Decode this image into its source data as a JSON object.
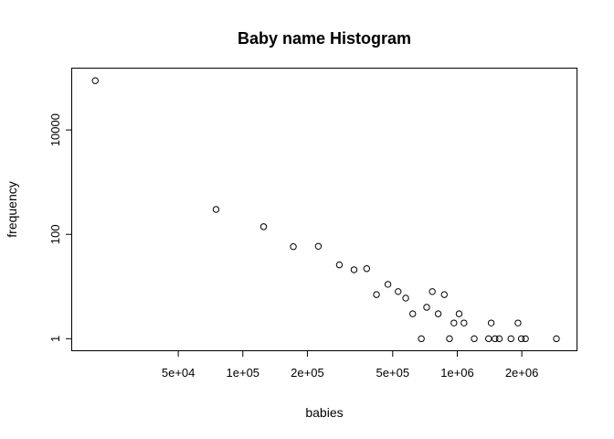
{
  "chart_data": {
    "type": "scatter",
    "title": "Baby name Histogram",
    "xlabel": "babies",
    "ylabel": "frequency",
    "x_scale": "log",
    "y_scale": "log",
    "xlim": [
      16000,
      3600000
    ],
    "ylim": [
      0.6,
      150000
    ],
    "x_ticks": [
      {
        "value": 50000,
        "label": "5e+04"
      },
      {
        "value": 100000,
        "label": "1e+05"
      },
      {
        "value": 200000,
        "label": "2e+05"
      },
      {
        "value": 500000,
        "label": "5e+05"
      },
      {
        "value": 1000000,
        "label": "1e+06"
      },
      {
        "value": 2000000,
        "label": "2e+06"
      }
    ],
    "y_ticks": [
      {
        "value": 1,
        "label": "1"
      },
      {
        "value": 100,
        "label": "100"
      },
      {
        "value": 10000,
        "label": "10000"
      }
    ],
    "grid": false,
    "legend": "none",
    "points": [
      {
        "x": 20500,
        "y": 88000
      },
      {
        "x": 75000,
        "y": 300
      },
      {
        "x": 125000,
        "y": 140
      },
      {
        "x": 172000,
        "y": 58
      },
      {
        "x": 225000,
        "y": 59
      },
      {
        "x": 282000,
        "y": 26
      },
      {
        "x": 330000,
        "y": 21
      },
      {
        "x": 378000,
        "y": 22
      },
      {
        "x": 420000,
        "y": 7
      },
      {
        "x": 475000,
        "y": 11
      },
      {
        "x": 530000,
        "y": 8
      },
      {
        "x": 575000,
        "y": 6
      },
      {
        "x": 620000,
        "y": 3
      },
      {
        "x": 680000,
        "y": 1
      },
      {
        "x": 720000,
        "y": 4
      },
      {
        "x": 765000,
        "y": 8
      },
      {
        "x": 815000,
        "y": 3
      },
      {
        "x": 870000,
        "y": 7
      },
      {
        "x": 920000,
        "y": 1
      },
      {
        "x": 965000,
        "y": 2
      },
      {
        "x": 1020000,
        "y": 3
      },
      {
        "x": 1075000,
        "y": 2
      },
      {
        "x": 1200000,
        "y": 1
      },
      {
        "x": 1400000,
        "y": 1
      },
      {
        "x": 1440000,
        "y": 2
      },
      {
        "x": 1500000,
        "y": 1
      },
      {
        "x": 1570000,
        "y": 1
      },
      {
        "x": 1780000,
        "y": 1
      },
      {
        "x": 1920000,
        "y": 2
      },
      {
        "x": 1990000,
        "y": 1
      },
      {
        "x": 2080000,
        "y": 1
      },
      {
        "x": 2900000,
        "y": 1
      }
    ]
  }
}
